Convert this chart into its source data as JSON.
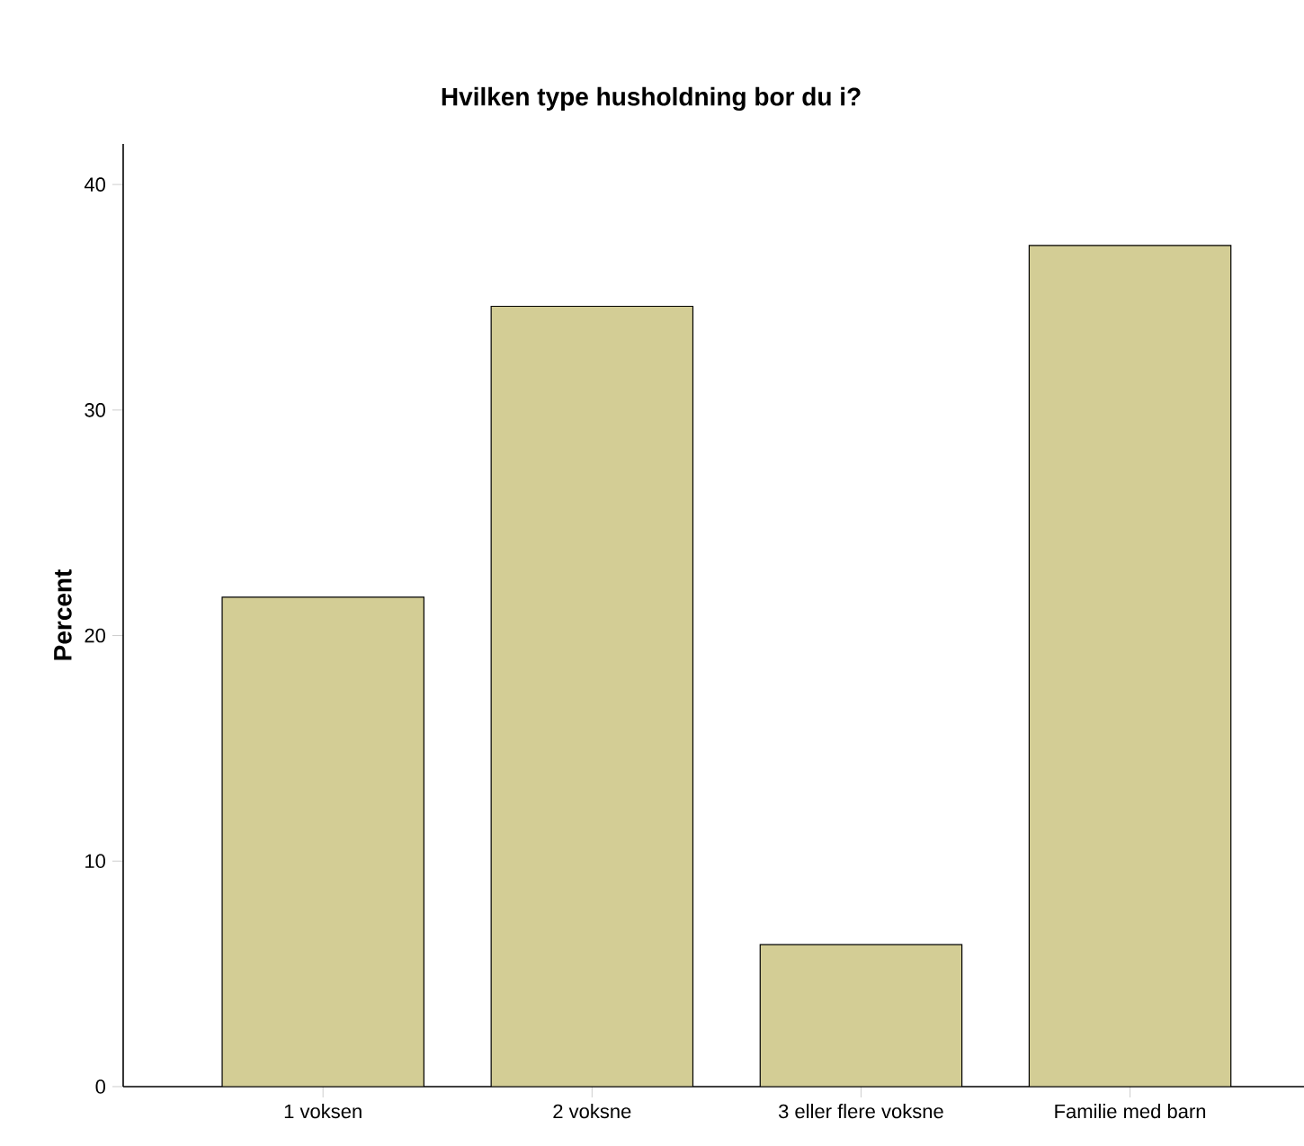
{
  "chart_data": {
    "type": "bar",
    "title": "Hvilken type husholdning bor du i?",
    "ylabel": "Percent",
    "categories": [
      "1 voksen",
      "2 voksne",
      "3 eller flere voksne",
      "Familie med barn"
    ],
    "values": [
      21.7,
      34.6,
      6.3,
      37.3
    ],
    "color": "#d3cd95",
    "ylim": [
      0,
      41.8
    ],
    "yticks": [
      0,
      10,
      20,
      30,
      40
    ],
    "grid": false
  }
}
